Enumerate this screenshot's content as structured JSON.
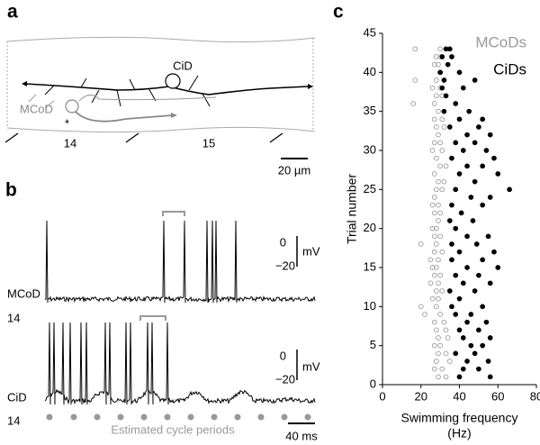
{
  "panel_a": {
    "letter": "a",
    "labels": {
      "cell1": "CiD",
      "cell2": "MCoD",
      "asterisk": "*",
      "segment1": "14",
      "segment2": "15",
      "scale": "20 µm"
    }
  },
  "panel_b": {
    "letter": "b",
    "traces": [
      {
        "name": "MCoD",
        "segment": "14",
        "scale_zero": "0",
        "scale_unit": "mV",
        "scale_low": "−20"
      },
      {
        "name": "CiD",
        "segment": "14",
        "scale_zero": "0",
        "scale_unit": "mV",
        "scale_low": "−20"
      }
    ],
    "footer": "Estimated cycle periods",
    "time_scale": "40 ms"
  },
  "chart_data": {
    "type": "scatter",
    "panel_label": "c",
    "x_label": [
      "Swimming frequency",
      "(Hz)"
    ],
    "y_label": "Trial number",
    "xlim": [
      0,
      80
    ],
    "xticks": [
      0,
      20,
      40,
      60,
      80
    ],
    "ylim": [
      0,
      45
    ],
    "yticks": [
      0,
      5,
      10,
      15,
      20,
      25,
      30,
      35,
      40,
      45
    ],
    "legend": "upper right",
    "series": [
      {
        "name": "MCoDs",
        "color": "#999999",
        "marker": "open",
        "x": [
          17,
          30,
          28,
          30,
          27,
          29,
          30,
          17,
          28,
          26,
          30,
          28,
          31,
          16,
          27,
          29,
          27,
          31,
          28,
          32,
          29,
          27,
          30,
          26,
          31,
          28,
          30,
          33,
          27,
          29,
          32,
          28,
          31,
          27,
          26,
          29,
          27,
          30,
          29,
          26,
          28,
          27,
          30,
          20,
          28,
          27,
          31,
          25,
          29,
          26,
          28,
          27,
          30,
          25,
          29,
          28,
          31,
          26,
          29,
          20,
          28,
          22,
          30,
          27,
          32,
          28,
          33,
          29,
          34,
          27,
          30,
          29,
          33,
          28,
          35,
          27,
          31,
          29,
          33
        ],
        "values": [
          43,
          43,
          42,
          42,
          41,
          41,
          40,
          39,
          39,
          38,
          38,
          37,
          37,
          36,
          36,
          35,
          34,
          34,
          33,
          33,
          32,
          31,
          31,
          30,
          30,
          29,
          28,
          28,
          27,
          26,
          26,
          25,
          25,
          24,
          23,
          23,
          22,
          22,
          21,
          20,
          20,
          19,
          19,
          18,
          18,
          17,
          17,
          16,
          16,
          15,
          15,
          14,
          14,
          13,
          13,
          12,
          12,
          11,
          11,
          10,
          10,
          9,
          9,
          8,
          8,
          7,
          7,
          6,
          6,
          5,
          5,
          4,
          4,
          3,
          3,
          2,
          2,
          1,
          1
        ]
      },
      {
        "name": "CiDs",
        "color": "#000000",
        "marker": "filled",
        "x": [
          33,
          35,
          31,
          36,
          34,
          30,
          40,
          32,
          48,
          31,
          42,
          33,
          38,
          32,
          45,
          40,
          52,
          35,
          50,
          44,
          56,
          38,
          48,
          42,
          54,
          36,
          58,
          44,
          52,
          40,
          60,
          48,
          38,
          66,
          46,
          56,
          36,
          52,
          41,
          35,
          47,
          38,
          44,
          55,
          36,
          49,
          40,
          58,
          36,
          52,
          44,
          60,
          38,
          50,
          42,
          56,
          35,
          48,
          40,
          36,
          52,
          38,
          46,
          44,
          54,
          40,
          50,
          42,
          56,
          46,
          52,
          38,
          48,
          44,
          55,
          42,
          50,
          40,
          56
        ],
        "values": [
          43,
          43,
          42,
          42,
          41,
          40,
          40,
          39,
          39,
          38,
          38,
          37,
          36,
          35,
          35,
          34,
          34,
          33,
          33,
          32,
          32,
          31,
          31,
          30,
          30,
          29,
          29,
          28,
          28,
          27,
          27,
          26,
          25,
          25,
          24,
          24,
          23,
          23,
          22,
          21,
          21,
          20,
          19,
          19,
          18,
          18,
          17,
          17,
          16,
          16,
          15,
          15,
          14,
          14,
          13,
          13,
          12,
          12,
          11,
          10,
          10,
          9,
          9,
          8,
          8,
          7,
          7,
          6,
          6,
          5,
          5,
          4,
          4,
          3,
          3,
          2,
          2,
          1,
          1
        ]
      }
    ]
  }
}
